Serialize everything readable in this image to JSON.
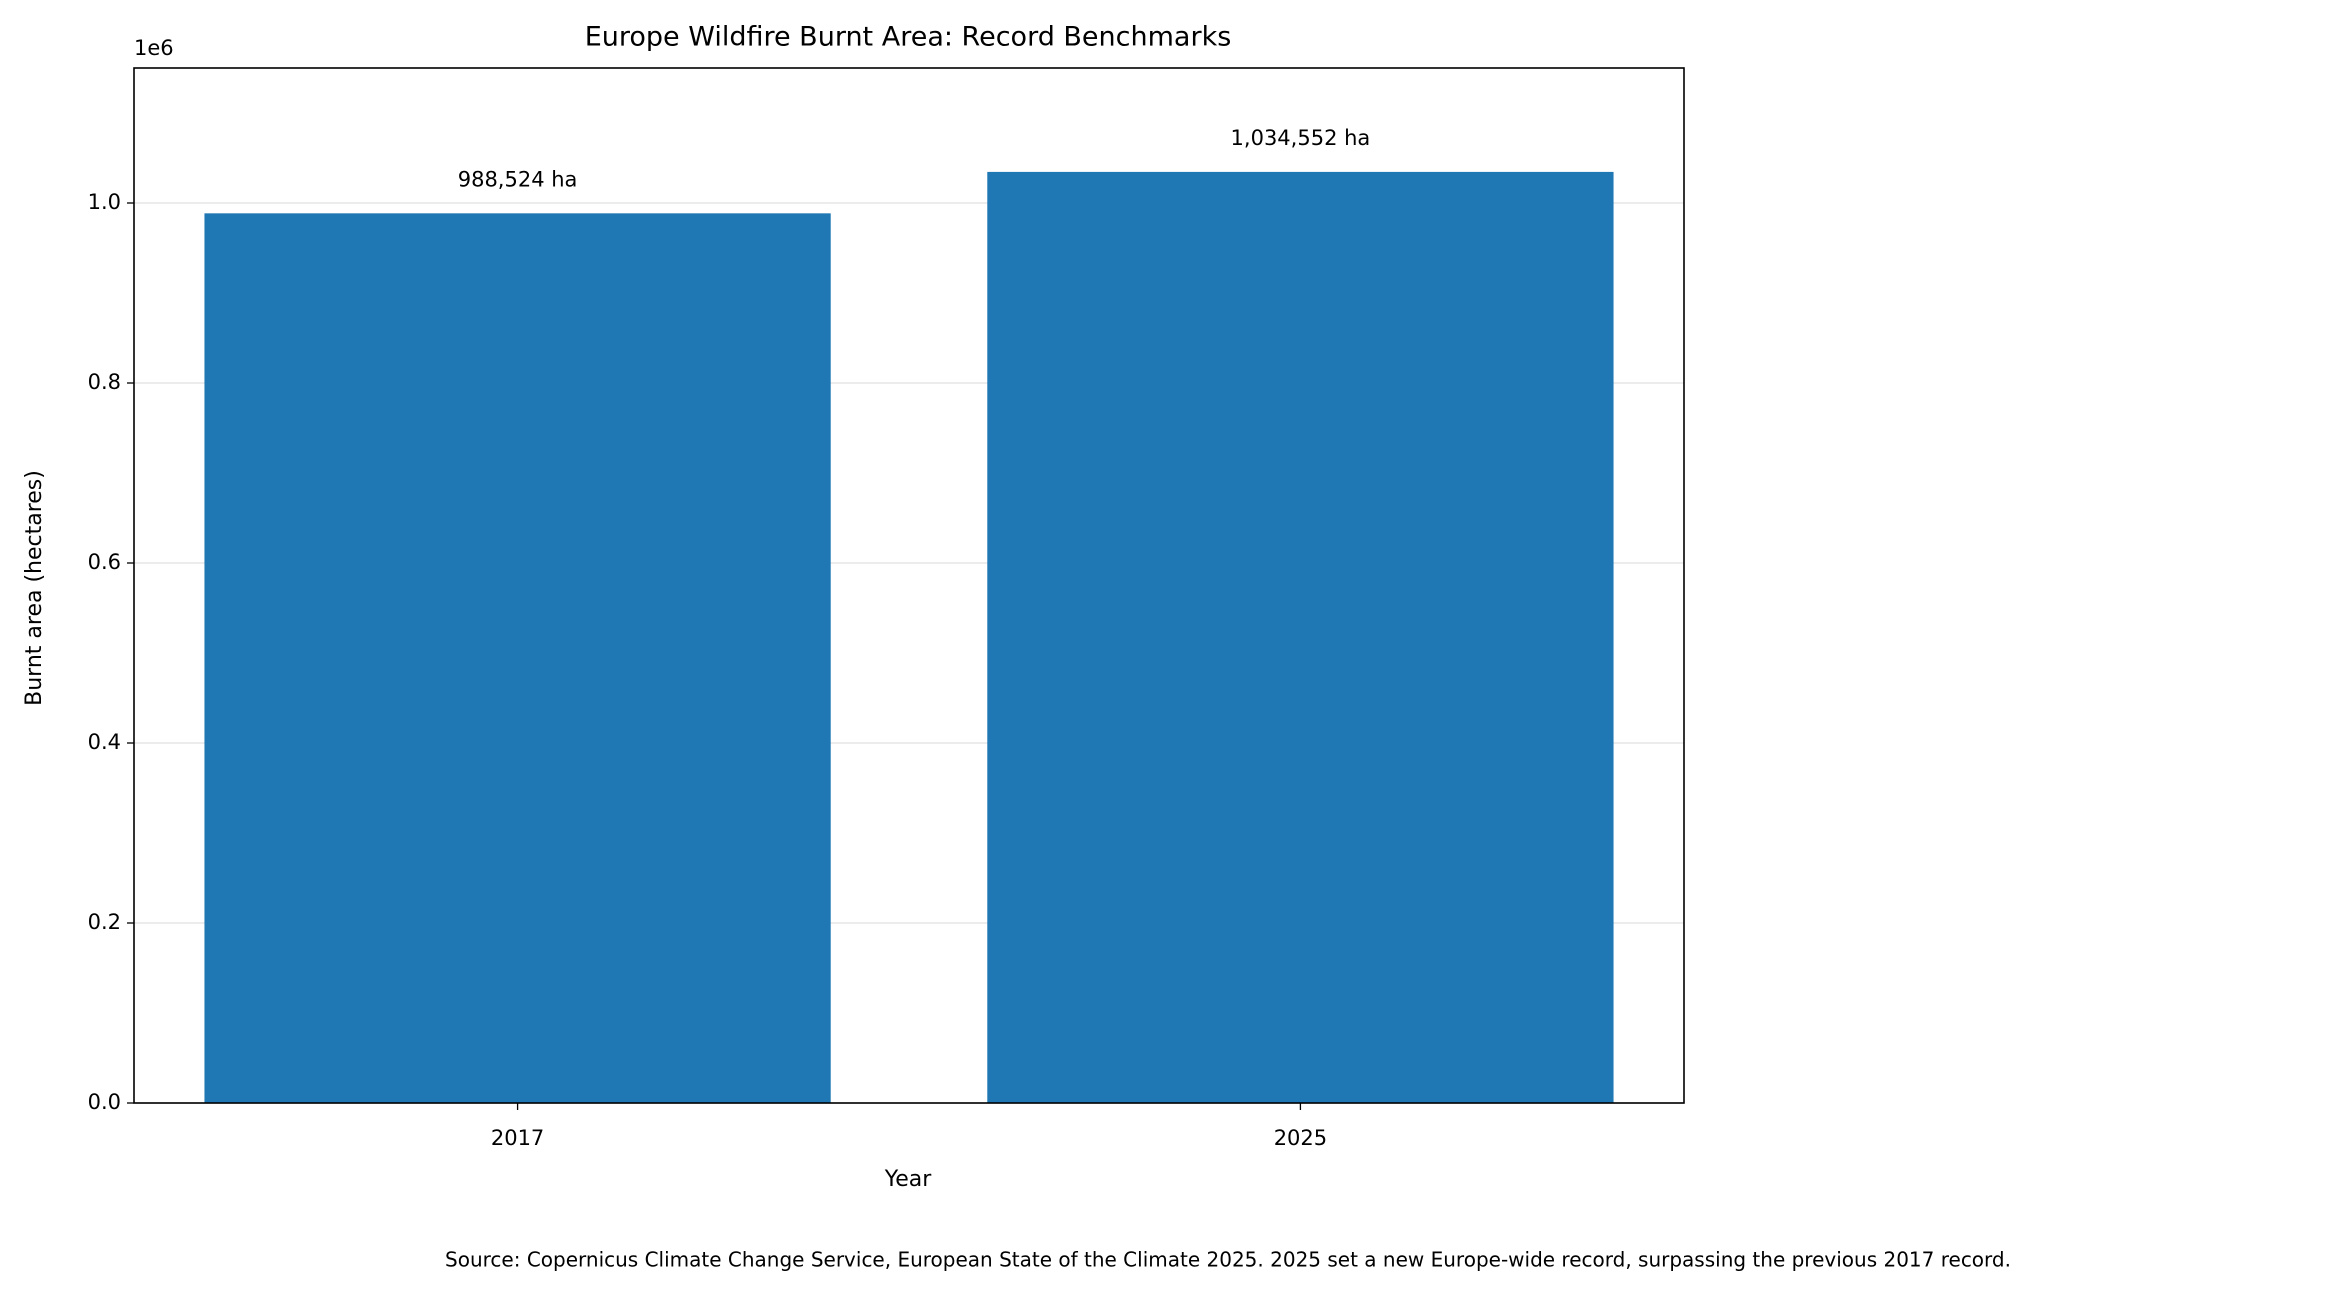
{
  "chart_data": {
    "type": "bar",
    "title": "Europe Wildfire Burnt Area: Record Benchmarks",
    "x_label": "Year",
    "y_label": "Burnt area (hectares)",
    "y_offset_label": "1e6",
    "categories": [
      "2017",
      "2025"
    ],
    "values": [
      988524,
      1034552
    ],
    "value_labels": [
      "988,524 ha",
      "1,034,552 ha"
    ],
    "color": "#1f77b4",
    "ylim": [
      0,
      1150000
    ],
    "yticks": [
      {
        "value": 0,
        "label": "0.0"
      },
      {
        "value": 200000,
        "label": "0.2"
      },
      {
        "value": 400000,
        "label": "0.4"
      },
      {
        "value": 600000,
        "label": "0.6"
      },
      {
        "value": 800000,
        "label": "0.8"
      },
      {
        "value": 1000000,
        "label": "1.0"
      }
    ],
    "grid": true,
    "note": "Source: Copernicus Climate Change Service, European State of the Climate 2025. 2025 set a new Europe-wide record, surpassing the previous 2017 record."
  }
}
